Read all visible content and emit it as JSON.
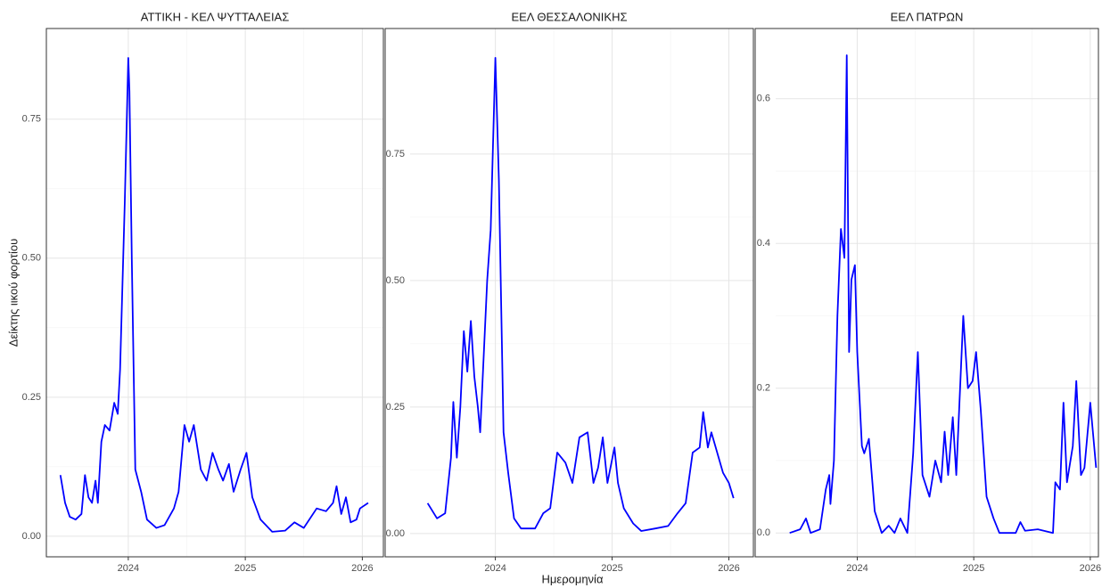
{
  "chart_data": [
    {
      "type": "line",
      "title": "ΑΤΤΙΚΗ - ΚΕΛ ΨΥΤΤΑΛΕΙΑΣ",
      "ylabel": "Δείκτης ιικού φορτίου",
      "color": "#0000ff",
      "grid": true,
      "xlim": [
        2023.3,
        2026.18
      ],
      "xticks": [
        2024,
        2025,
        2026
      ],
      "ylim": [
        -0.037,
        0.913
      ],
      "yticks": [
        {
          "value": 0,
          "label": "0.00"
        },
        {
          "value": 0.25,
          "label": "0.25"
        },
        {
          "value": 0.5,
          "label": "0.50"
        },
        {
          "value": 0.75,
          "label": "0.75"
        }
      ],
      "x": [
        2023.42,
        2023.46,
        2023.5,
        2023.55,
        2023.6,
        2023.63,
        2023.66,
        2023.69,
        2023.72,
        2023.74,
        2023.77,
        2023.8,
        2023.84,
        2023.88,
        2023.91,
        2023.93,
        2023.95,
        2023.97,
        2024.0,
        2024.01,
        2024.03,
        2024.06,
        2024.11,
        2024.16,
        2024.24,
        2024.31,
        2024.39,
        2024.43,
        2024.48,
        2024.52,
        2024.56,
        2024.62,
        2024.67,
        2024.72,
        2024.77,
        2024.81,
        2024.86,
        2024.9,
        2024.96,
        2025.01,
        2025.06,
        2025.13,
        2025.23,
        2025.34,
        2025.42,
        2025.5,
        2025.61,
        2025.69,
        2025.75,
        2025.78,
        2025.82,
        2025.86,
        2025.9,
        2025.95,
        2025.98,
        2026.05
      ],
      "values": [
        0.11,
        0.06,
        0.035,
        0.03,
        0.04,
        0.11,
        0.07,
        0.06,
        0.1,
        0.06,
        0.17,
        0.2,
        0.19,
        0.24,
        0.22,
        0.3,
        0.45,
        0.6,
        0.86,
        0.8,
        0.5,
        0.12,
        0.08,
        0.03,
        0.015,
        0.02,
        0.05,
        0.08,
        0.2,
        0.17,
        0.2,
        0.12,
        0.1,
        0.15,
        0.12,
        0.1,
        0.13,
        0.08,
        0.12,
        0.15,
        0.07,
        0.03,
        0.008,
        0.01,
        0.025,
        0.015,
        0.05,
        0.045,
        0.06,
        0.09,
        0.04,
        0.07,
        0.025,
        0.03,
        0.05,
        0.06
      ]
    },
    {
      "type": "line",
      "title": "ΕΕΛ ΘΕΣΣΑΛΟΝΙΚΗΣ",
      "xlabel": "Ημερομηνία",
      "color": "#0000ff",
      "grid": true,
      "xlim": [
        2023.27,
        2026.21
      ],
      "xticks": [
        2024,
        2025,
        2026
      ],
      "ylim": [
        -0.046,
        0.998
      ],
      "yticks": [
        {
          "value": 0,
          "label": "0.00"
        },
        {
          "value": 0.25,
          "label": "0.25"
        },
        {
          "value": 0.5,
          "label": "0.50"
        },
        {
          "value": 0.75,
          "label": "0.75"
        }
      ],
      "x": [
        2023.42,
        2023.5,
        2023.57,
        2023.62,
        2023.64,
        2023.67,
        2023.7,
        2023.73,
        2023.76,
        2023.79,
        2023.82,
        2023.85,
        2023.87,
        2023.9,
        2023.93,
        2023.96,
        2024.0,
        2024.03,
        2024.07,
        2024.11,
        2024.16,
        2024.22,
        2024.34,
        2024.41,
        2024.47,
        2024.53,
        2024.6,
        2024.66,
        2024.72,
        2024.79,
        2024.84,
        2024.88,
        2024.92,
        2024.96,
        2025.02,
        2025.05,
        2025.1,
        2025.18,
        2025.25,
        2025.37,
        2025.48,
        2025.56,
        2025.63,
        2025.69,
        2025.75,
        2025.78,
        2025.82,
        2025.85,
        2025.9,
        2025.95,
        2026.0,
        2026.04
      ],
      "values": [
        0.06,
        0.03,
        0.04,
        0.15,
        0.26,
        0.15,
        0.25,
        0.4,
        0.32,
        0.42,
        0.31,
        0.25,
        0.2,
        0.35,
        0.5,
        0.6,
        0.94,
        0.7,
        0.2,
        0.12,
        0.03,
        0.01,
        0.01,
        0.04,
        0.05,
        0.16,
        0.14,
        0.1,
        0.19,
        0.2,
        0.1,
        0.13,
        0.19,
        0.1,
        0.17,
        0.1,
        0.05,
        0.02,
        0.005,
        0.01,
        0.015,
        0.04,
        0.06,
        0.16,
        0.17,
        0.24,
        0.17,
        0.2,
        0.16,
        0.12,
        0.1,
        0.07
      ]
    },
    {
      "type": "line",
      "title": "ΕΕΛ ΠΑΤΡΩΝ",
      "color": "#0000ff",
      "grid": true,
      "xlim": [
        2023.3,
        2026.07
      ],
      "xticks": [
        2024,
        2025,
        2026
      ],
      "ylim": [
        -0.033,
        0.697
      ],
      "yticks": [
        {
          "value": 0,
          "label": "0.0"
        },
        {
          "value": 0.2,
          "label": "0.2"
        },
        {
          "value": 0.4,
          "label": "0.4"
        },
        {
          "value": 0.6,
          "label": "0.6"
        }
      ],
      "x": [
        2023.42,
        2023.51,
        2023.56,
        2023.6,
        2023.68,
        2023.73,
        2023.76,
        2023.77,
        2023.8,
        2023.83,
        2023.86,
        2023.89,
        2023.91,
        2023.93,
        2023.95,
        2023.98,
        2024.0,
        2024.04,
        2024.06,
        2024.1,
        2024.15,
        2024.21,
        2024.27,
        2024.32,
        2024.37,
        2024.43,
        2024.48,
        2024.52,
        2024.56,
        2024.62,
        2024.67,
        2024.72,
        2024.75,
        2024.78,
        2024.82,
        2024.85,
        2024.91,
        2024.95,
        2024.99,
        2025.02,
        2025.06,
        2025.11,
        2025.17,
        2025.22,
        2025.36,
        2025.4,
        2025.44,
        2025.55,
        2025.68,
        2025.7,
        2025.74,
        2025.77,
        2025.8,
        2025.85,
        2025.88,
        2025.92,
        2025.95,
        2026.0,
        2026.05
      ],
      "values": [
        0.0,
        0.005,
        0.02,
        0.0,
        0.005,
        0.06,
        0.08,
        0.04,
        0.1,
        0.3,
        0.42,
        0.38,
        0.66,
        0.25,
        0.35,
        0.37,
        0.25,
        0.12,
        0.11,
        0.13,
        0.03,
        0.0,
        0.01,
        0.0,
        0.02,
        0.0,
        0.11,
        0.25,
        0.08,
        0.05,
        0.1,
        0.07,
        0.14,
        0.08,
        0.16,
        0.08,
        0.3,
        0.2,
        0.21,
        0.25,
        0.17,
        0.05,
        0.02,
        0.0,
        0.0,
        0.015,
        0.003,
        0.005,
        0.0,
        0.07,
        0.06,
        0.18,
        0.07,
        0.12,
        0.21,
        0.08,
        0.09,
        0.18,
        0.09
      ]
    }
  ]
}
